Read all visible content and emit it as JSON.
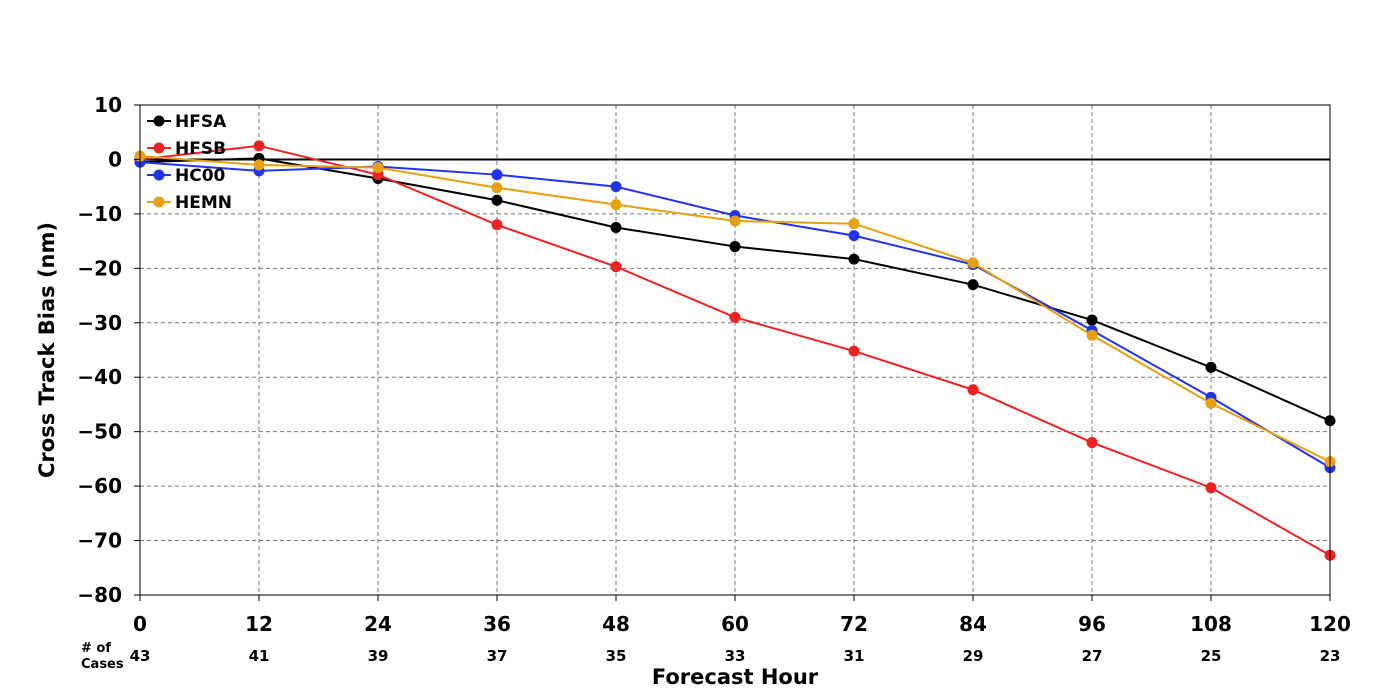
{
  "chart_data": {
    "type": "line",
    "xlabel": "Forecast Hour",
    "ylabel": "Cross Track Bias (nm)",
    "xlim": [
      0,
      120
    ],
    "ylim": [
      -80,
      10
    ],
    "x_ticks": [
      0,
      12,
      24,
      36,
      48,
      60,
      72,
      84,
      96,
      108,
      120
    ],
    "y_ticks": [
      10,
      0,
      -10,
      -20,
      -30,
      -40,
      -50,
      -60,
      -70,
      -80
    ],
    "y_tick_labels": [
      "10",
      "0",
      "−10",
      "−20",
      "−30",
      "−40",
      "−50",
      "−60",
      "−70",
      "−80"
    ],
    "grid": true,
    "zero_line": true,
    "legend_position": "top-left",
    "cases_title_line1": "# of",
    "cases_title_line2": "Cases",
    "cases": [
      43,
      41,
      39,
      37,
      35,
      33,
      31,
      29,
      27,
      25,
      23
    ],
    "x": [
      0,
      12,
      24,
      36,
      48,
      60,
      72,
      84,
      96,
      108,
      120
    ],
    "series": [
      {
        "name": "HFSA",
        "color": "#000000",
        "values": [
          -0.5,
          0.2,
          -3.5,
          -7.5,
          -12.5,
          -16.0,
          -18.3,
          -23.0,
          -29.5,
          -38.2,
          -48.0
        ]
      },
      {
        "name": "HFSB",
        "color": "#ee2222",
        "values": [
          0.0,
          2.5,
          -2.8,
          -12.0,
          -19.7,
          -29.0,
          -35.2,
          -42.3,
          -52.0,
          -60.3,
          -72.7
        ]
      },
      {
        "name": "HC00",
        "color": "#2233ee",
        "values": [
          -0.5,
          -2.1,
          -1.3,
          -2.8,
          -5.0,
          -10.3,
          -14.0,
          -19.3,
          -31.4,
          -43.7,
          -56.6
        ]
      },
      {
        "name": "HEMN",
        "color": "#e6a010",
        "values": [
          0.6,
          -1.0,
          -1.5,
          -5.2,
          -8.3,
          -11.3,
          -11.8,
          -19.0,
          -32.3,
          -44.8,
          -55.5
        ]
      }
    ]
  }
}
